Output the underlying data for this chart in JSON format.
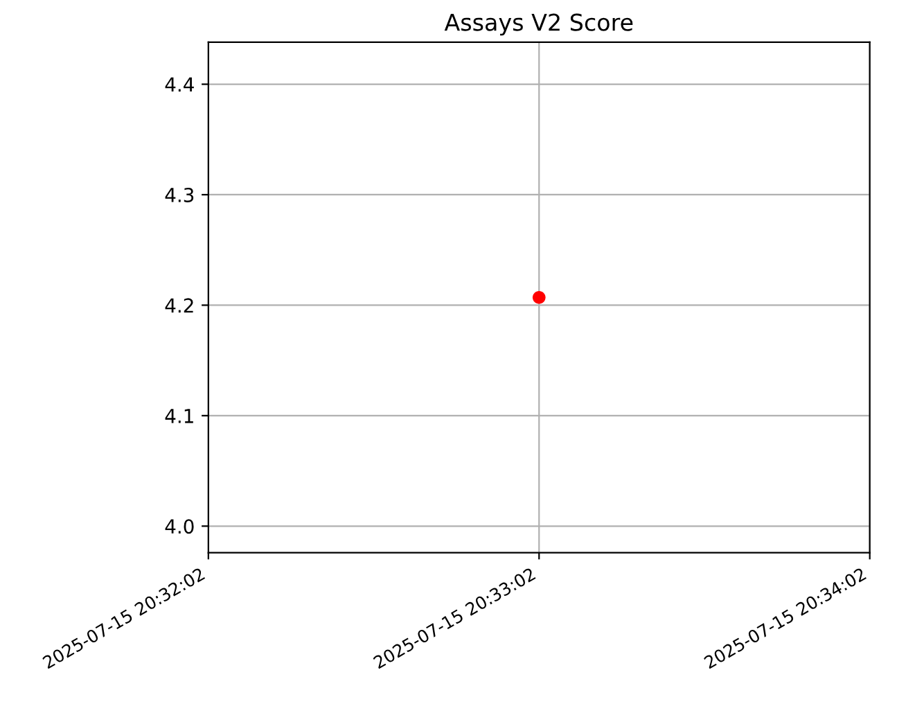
{
  "chart_data": {
    "type": "scatter",
    "title": "Assays V2 Score",
    "x": [
      "2025-07-15T20:33:02"
    ],
    "series": [
      {
        "color": "#ff0000",
        "values": [
          4.207
        ]
      }
    ],
    "xlim": [
      "2025-07-15T20:32:02",
      "2025-07-15T20:34:02"
    ],
    "xticks": [
      {
        "value": "2025-07-15T20:32:02",
        "label": "2025-07-15 20:32:02"
      },
      {
        "value": "2025-07-15T20:33:02",
        "label": "2025-07-15 20:33:02"
      },
      {
        "value": "2025-07-15T20:34:02",
        "label": "2025-07-15 20:34:02"
      }
    ],
    "ylim": [
      3.976,
      4.438
    ],
    "yticks": [
      {
        "value": 4.0,
        "label": "4.0"
      },
      4.1,
      4.2,
      4.3,
      4.4
    ],
    "grid": true,
    "marker": "circle"
  }
}
